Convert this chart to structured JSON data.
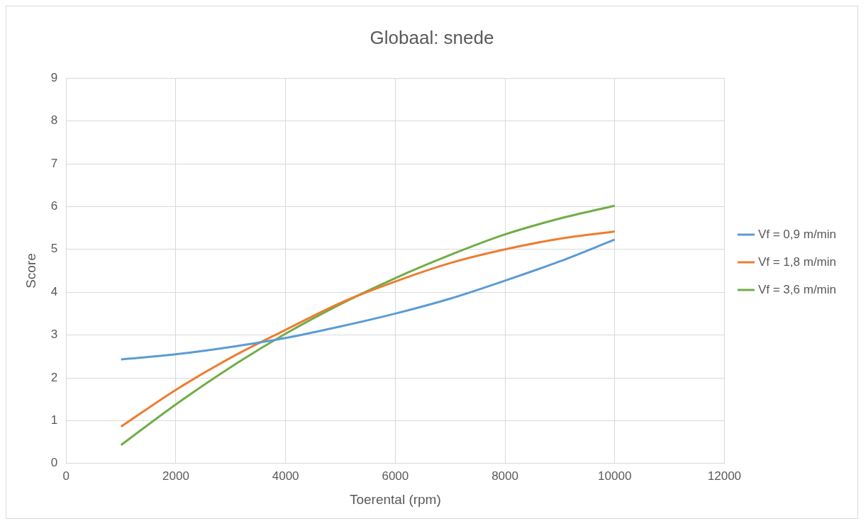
{
  "chart_data": {
    "type": "line",
    "title": "Globaal: snede",
    "xlabel": "Toerental (rpm)",
    "ylabel": "Score",
    "x": [
      1000,
      2000,
      3000,
      4000,
      5000,
      6000,
      7000,
      8000,
      9000,
      10000
    ],
    "series": [
      {
        "name": "Vf = 0,9 m/min",
        "color": "#5b9bd5",
        "values": [
          2.43,
          2.55,
          2.72,
          2.93,
          3.2,
          3.5,
          3.85,
          4.27,
          4.72,
          5.23
        ]
      },
      {
        "name": "Vf = 1,8 m/min",
        "color": "#ed7d31",
        "values": [
          0.86,
          1.72,
          2.47,
          3.12,
          3.75,
          4.25,
          4.68,
          5.0,
          5.25,
          5.42
        ]
      },
      {
        "name": "Vf = 3,6 m/min",
        "color": "#70ad47",
        "values": [
          0.43,
          1.38,
          2.25,
          3.03,
          3.72,
          4.33,
          4.87,
          5.35,
          5.72,
          6.02
        ]
      }
    ],
    "xlim": [
      0,
      12000
    ],
    "xticks": [
      0,
      2000,
      4000,
      6000,
      8000,
      10000,
      12000
    ],
    "ylim": [
      0,
      9
    ],
    "yticks": [
      0,
      1,
      2,
      3,
      4,
      5,
      6,
      7,
      8,
      9
    ],
    "grid": true,
    "legend": "right",
    "marker": "none",
    "line_style": "solid"
  }
}
